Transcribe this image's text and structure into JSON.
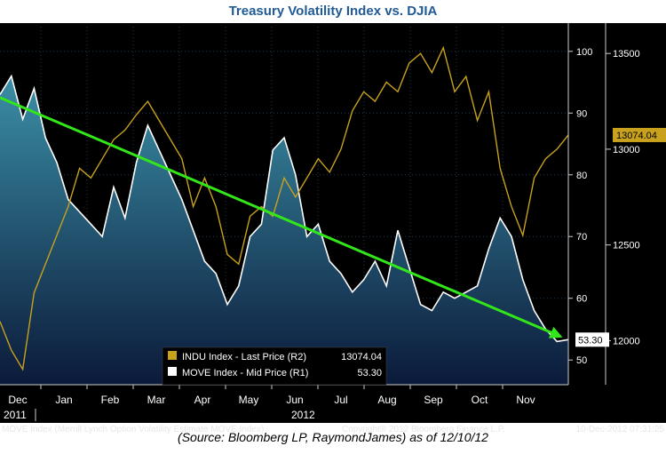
{
  "title": "Treasury Volatility Index vs. DJIA",
  "source_note": "(Source: Bloomberg LP, RaymondJames) as of 12/10/12",
  "footer": {
    "left": "MOVE Index (Merrill Lynch Option Volatility Estimate MOVE Index)",
    "center": "Copyright® 2012 Bloomberg Finance L.P.",
    "right": "10-Dec-2012 07:31:25"
  },
  "colors": {
    "indu_line": "#c8a21c",
    "move_line": "#ffffff",
    "move_fill_top": "#3b8fa6",
    "move_fill_bottom": "#0b1a3a",
    "trend_arrow": "#33e61a",
    "background": "#000000",
    "title": "#1f5a96"
  },
  "chart_data": {
    "type": "line",
    "title": "Treasury Volatility Index vs. DJIA",
    "x_labels": [
      "Dec",
      "Jan",
      "Feb",
      "Mar",
      "Apr",
      "May",
      "Jun",
      "Jul",
      "Aug",
      "Sep",
      "Oct",
      "Nov"
    ],
    "year_labels": [
      "2011",
      "2012"
    ],
    "left_axis": {
      "ticks": [
        50,
        60,
        70,
        80,
        90,
        100
      ],
      "range": [
        46,
        104
      ]
    },
    "right_axis": {
      "ticks": [
        12000,
        12500,
        13000,
        13500
      ],
      "range": [
        11770,
        13640
      ]
    },
    "legend_position": "bottom-center",
    "last_labels": {
      "indu": "13074.04",
      "move": "53.30"
    },
    "series": [
      {
        "name": "INDU Index - Last Price (R2)",
        "last_value": "13074.04",
        "axis": "right",
        "style": "line",
        "x": [
          0,
          0.02,
          0.04,
          0.06,
          0.08,
          0.1,
          0.12,
          0.14,
          0.16,
          0.18,
          0.2,
          0.22,
          0.24,
          0.26,
          0.28,
          0.3,
          0.32,
          0.34,
          0.36,
          0.38,
          0.4,
          0.42,
          0.44,
          0.46,
          0.48,
          0.5,
          0.52,
          0.54,
          0.56,
          0.58,
          0.6,
          0.62,
          0.64,
          0.66,
          0.68,
          0.7,
          0.72,
          0.74,
          0.76,
          0.78,
          0.8,
          0.82,
          0.84,
          0.86,
          0.88,
          0.9,
          0.92,
          0.94,
          0.96,
          0.98,
          1.0
        ],
        "values": [
          12100,
          11950,
          11850,
          12250,
          12400,
          12550,
          12700,
          12900,
          12850,
          12950,
          13050,
          13100,
          13180,
          13250,
          13150,
          13050,
          12950,
          12700,
          12850,
          12700,
          12450,
          12400,
          12650,
          12700,
          12650,
          12850,
          12750,
          12850,
          12950,
          12880,
          13000,
          13200,
          13300,
          13250,
          13350,
          13300,
          13450,
          13500,
          13400,
          13530,
          13300,
          13380,
          13150,
          13300,
          12900,
          12700,
          12550,
          12850,
          12950,
          13000,
          13074.04
        ]
      },
      {
        "name": "MOVE Index - Mid Price (R1)",
        "last_value": "53.30",
        "axis": "left",
        "style": "area",
        "x": [
          0,
          0.02,
          0.04,
          0.06,
          0.08,
          0.1,
          0.12,
          0.14,
          0.16,
          0.18,
          0.2,
          0.22,
          0.24,
          0.26,
          0.28,
          0.3,
          0.32,
          0.34,
          0.36,
          0.38,
          0.4,
          0.42,
          0.44,
          0.46,
          0.48,
          0.5,
          0.52,
          0.54,
          0.56,
          0.58,
          0.6,
          0.62,
          0.64,
          0.66,
          0.68,
          0.7,
          0.72,
          0.74,
          0.76,
          0.78,
          0.8,
          0.82,
          0.84,
          0.86,
          0.88,
          0.9,
          0.92,
          0.94,
          0.96,
          0.98,
          1.0
        ],
        "values": [
          93,
          96,
          89,
          94,
          86,
          82,
          76,
          74,
          72,
          70,
          78,
          73,
          82,
          88,
          84,
          80,
          76,
          71,
          66,
          64,
          59,
          62,
          70,
          72,
          84,
          86,
          80,
          70,
          72,
          66,
          64,
          61,
          63,
          66,
          62,
          71,
          65,
          59,
          58,
          61,
          60,
          61,
          62,
          68,
          73,
          70,
          63,
          58,
          55,
          53,
          53.3
        ]
      },
      {
        "name": "Trend",
        "axis": "left",
        "style": "arrow",
        "x": [
          0,
          1.0
        ],
        "values": [
          92.5,
          54
        ]
      }
    ]
  }
}
